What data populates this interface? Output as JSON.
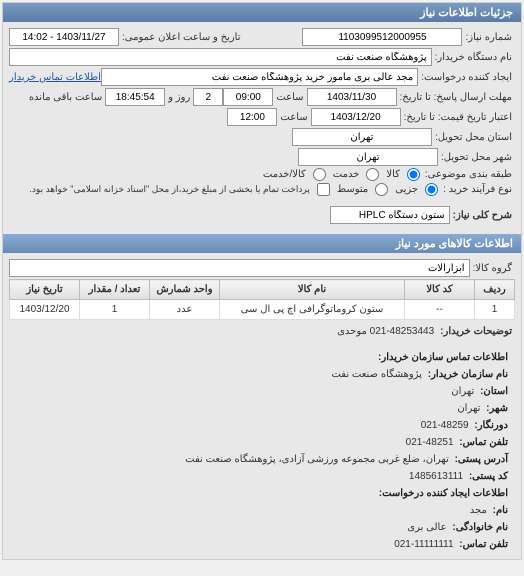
{
  "header": {
    "title": "جزئیات اطلاعات نیاز"
  },
  "need": {
    "number_label": "شماره نیاز:",
    "number": "1103099512000955",
    "announce_label": "تاریخ و ساعت اعلان عمومی:",
    "announce": "1403/11/27 - 14:02",
    "buyer_device_label": "نام دستگاه خریدار:",
    "buyer_device": "پژوهشگاه صنعت نفت",
    "creator_label": "ایجاد کننده درخواست:",
    "creator": "مجد عالی بری مامور خرید پژوهشگاه صنعت نفت",
    "contact_link": "اطلاعات تماس خریدار",
    "deadline_label": "مهلت ارسال پاسخ: تا تاریخ:",
    "deadline_date": "1403/11/30",
    "time_label1": "ساعت",
    "deadline_time": "09:00",
    "days_label": "روز و",
    "days": "2",
    "remain_label": "ساعت باقی مانده",
    "remain": "18:45:54",
    "validity_label": "اعتبار تاریخ قیمت: تا تاریخ:",
    "validity_date": "1403/12/20",
    "validity_time": "12:00",
    "delivery_state_label": "استان محل تحویل:",
    "delivery_state": "تهران",
    "delivery_city_label": "شهر محل تحویل:",
    "delivery_city": "تهران",
    "category_label": "طبقه بندی موضوعی:",
    "cat_goods": "کالا",
    "cat_service": "خدمت",
    "cat_goods_service": "کالا/خدمت",
    "process_label": "نوع فرآیند خرید :",
    "proc_small": "جزیی",
    "proc_medium": "متوسط",
    "proc_note": "پرداخت تمام یا بخشی از مبلغ خرید،از محل \"اسناد خزانه اسلامی\" خواهد بود.",
    "general_desc_label": "شرح کلی نیاز:",
    "general_desc": "ستون دستگاه HPLC"
  },
  "goods": {
    "section_title": "اطلاعات کالاهای مورد نیاز",
    "group_label": "گروه کالا:",
    "group": "ابزارآلات",
    "columns": {
      "row": "ردیف",
      "code": "کد کالا",
      "name": "نام کالا",
      "unit": "واحد شمارش",
      "qty": "تعداد / مقدار",
      "date": "تاریخ نیاز"
    },
    "rows": [
      {
        "row": "1",
        "code": "--",
        "name": "ستون کروماتوگرافی اچ پی ال سی",
        "unit": "عدد",
        "qty": "1",
        "date": "1403/12/20"
      }
    ],
    "notes_label": "توضیحات خریدار:",
    "notes": "021-48253443 موحدی"
  },
  "contact": {
    "section_title": "اطلاعات تماس سازمان خریدار:",
    "org_label": "نام سازمان خریدار:",
    "org": "پژوهشگاه صنعت نفت",
    "state_label": "استان:",
    "state": "تهران",
    "city_label": "شهر:",
    "city": "تهران",
    "fax_label": "دورنگار:",
    "fax": "48259-021",
    "phone_label": "تلفن تماس:",
    "phone": "48251-021",
    "address_label": "آدرس پستی:",
    "address": "تهران، ضلع غربی مجموعه ورزشی آزادی، پژوهشگاه صنعت نفت",
    "postal_label": "کد پستی:",
    "postal": "1485613111",
    "creator_section": "اطلاعات ایجاد کننده درخواست:",
    "fname_label": "نام:",
    "fname": "مجد",
    "lname_label": "نام خانوادگی:",
    "lname": "عالی بری",
    "cphone_label": "تلفن تماس:",
    "cphone": "11111111-021"
  },
  "colors": {
    "header_bg": "#6a8bb4"
  }
}
